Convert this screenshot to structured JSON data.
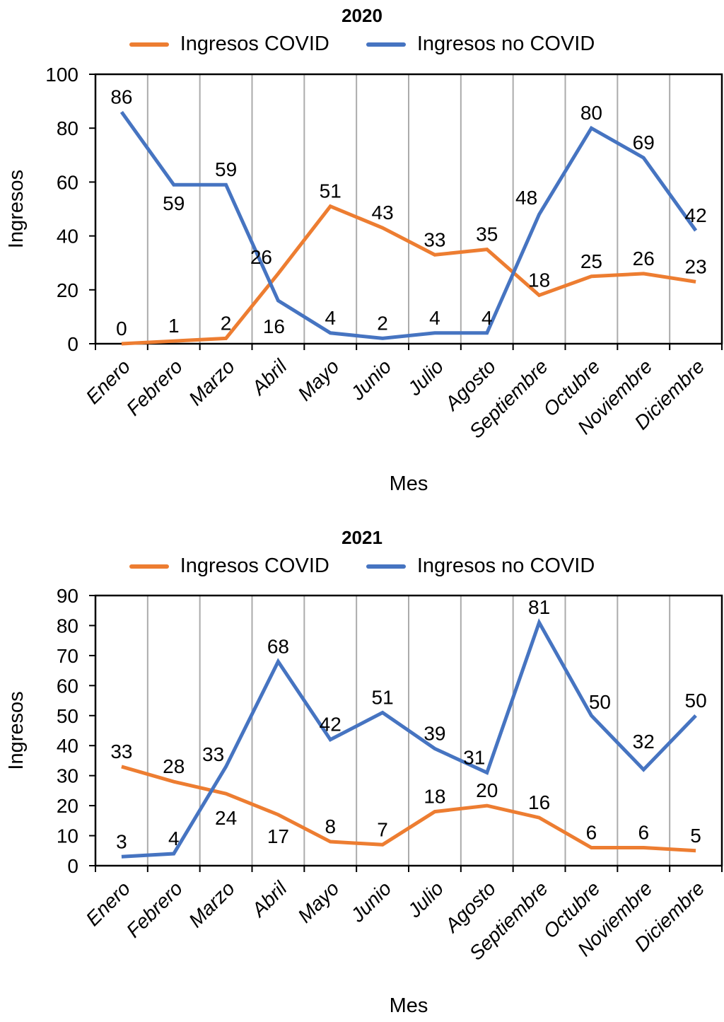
{
  "styles": {
    "background": "#FFFFFF",
    "grid_color": "#ABABAB",
    "axis_color": "#000000",
    "text_color": "#000000",
    "covid_color": "#ED7D31",
    "no_covid_color": "#4674C1"
  },
  "chart_data": [
    {
      "type": "line",
      "title": "2020",
      "xlabel": "Mes",
      "ylabel": "Ingresos",
      "ylim": [
        0,
        100
      ],
      "ytick_step": 20,
      "grid": "vertical",
      "legend_position": "top",
      "data_labels": true,
      "categories": [
        "Enero",
        "Febrero",
        "Marzo",
        "Abril",
        "Mayo",
        "Junio",
        "Julio",
        "Agosto",
        "Septiembre",
        "Octubre",
        "Noviembre",
        "Diciembre"
      ],
      "series": [
        {
          "name": "Ingresos COVID",
          "color": "#ED7D31",
          "values": [
            0,
            1,
            2,
            26,
            51,
            43,
            33,
            35,
            18,
            25,
            26,
            23
          ],
          "label_offsets": {
            "3": [
              -24,
              -14
            ]
          }
        },
        {
          "name": "Ingresos no COVID",
          "color": "#4674C1",
          "values": [
            86,
            59,
            59,
            16,
            4,
            2,
            4,
            4,
            48,
            80,
            69,
            42
          ],
          "label_offsets": {
            "1": [
              0,
              36
            ],
            "3": [
              -6,
              46
            ],
            "8": [
              -18,
              -14
            ]
          }
        }
      ]
    },
    {
      "type": "line",
      "title": "2021",
      "xlabel": "Mes",
      "ylabel": "Ingresos",
      "ylim": [
        0,
        90
      ],
      "ytick_step": 10,
      "grid": "vertical",
      "legend_position": "top",
      "data_labels": true,
      "categories": [
        "Enero",
        "Febrero",
        "Marzo",
        "Abril",
        "Mayo",
        "Junio",
        "Julio",
        "Agosto",
        "Septiembre",
        "Octubre",
        "Noviembre",
        "Diciembre"
      ],
      "series": [
        {
          "name": "Ingresos COVID",
          "color": "#ED7D31",
          "values": [
            33,
            28,
            24,
            17,
            8,
            7,
            18,
            20,
            16,
            6,
            6,
            5
          ],
          "label_offsets": {
            "2": [
              0,
              44
            ],
            "3": [
              0,
              40
            ]
          }
        },
        {
          "name": "Ingresos no COVID",
          "color": "#4674C1",
          "values": [
            3,
            4,
            33,
            68,
            42,
            51,
            39,
            31,
            81,
            50,
            32,
            50
          ],
          "label_offsets": {
            "2": [
              -18,
              -8
            ],
            "7": [
              -18,
              -12
            ],
            "9": [
              12,
              -10
            ],
            "10": [
              0,
              -30
            ]
          }
        }
      ]
    }
  ]
}
